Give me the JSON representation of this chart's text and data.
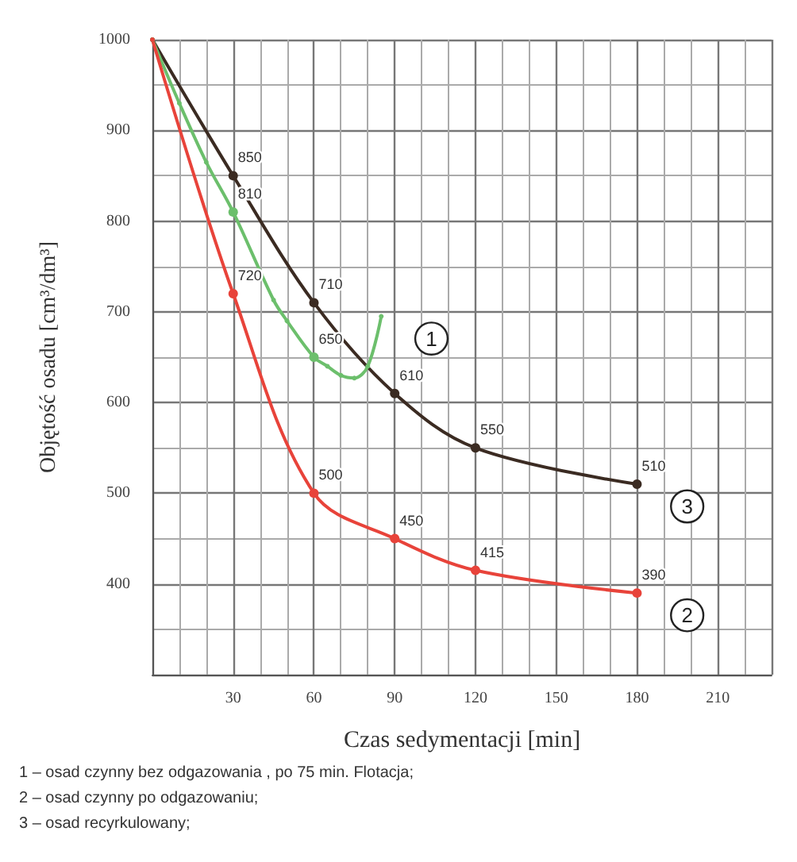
{
  "chart_data": {
    "type": "line",
    "xlabel": "Czas sedymentacji [min]",
    "ylabel": "Objętość osadu [cm³/dm³]",
    "xlim": [
      0,
      230
    ],
    "xticks": [
      {
        "value": 0,
        "label": null
      },
      30,
      60,
      90,
      120,
      150,
      180,
      210
    ],
    "ylim": [
      300,
      1000
    ],
    "yticks": [
      {
        "value": 300,
        "label": null
      },
      400,
      500,
      600,
      700,
      800,
      900,
      1000
    ],
    "grid": true,
    "legend": false,
    "marker": "circle",
    "line_style": "solid",
    "series": [
      {
        "name": "3",
        "color": "#3b2b22",
        "x": [
          0,
          30,
          60,
          90,
          120,
          180
        ],
        "values": [
          1000,
          850,
          710,
          610,
          550,
          510
        ],
        "value_labels": [
          null,
          "850",
          "710",
          "610",
          "550",
          "510"
        ]
      },
      {
        "name": "1",
        "color": "#6cbf6c",
        "x": [
          0,
          10,
          20,
          30,
          45,
          50,
          60,
          65,
          70,
          75,
          80,
          85
        ],
        "values": [
          1000,
          930,
          865,
          810,
          713,
          690,
          650,
          640,
          630,
          627,
          640,
          695
        ],
        "value_labels": [
          null,
          null,
          null,
          "810",
          null,
          null,
          "650",
          null,
          null,
          null,
          null,
          null
        ]
      },
      {
        "name": "2",
        "color": "#e8433a",
        "x": [
          0,
          30,
          60,
          90,
          120,
          180
        ],
        "values": [
          1000,
          720,
          500,
          450,
          415,
          390
        ],
        "value_labels": [
          null,
          "720",
          "500",
          "450",
          "415",
          "390"
        ]
      }
    ],
    "annotations": [
      "1 – osad czynny bez odgazowania , po 75 min. Flotacja;",
      "2 – osad czynny po odgazowaniu;",
      "3 – osad recyrkulowany;"
    ]
  }
}
